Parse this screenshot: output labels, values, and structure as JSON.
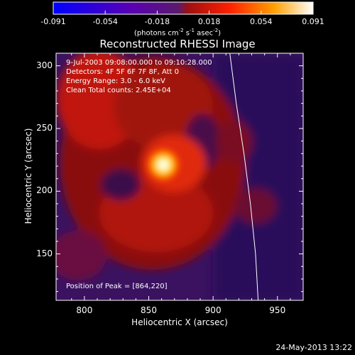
{
  "chart_data": {
    "type": "heatmap",
    "title": "Reconstructed RHESSI Image",
    "xlabel": "Heliocentric X (arcsec)",
    "ylabel": "Heliocentric Y (arcsec)",
    "xlim": [
      778,
      970
    ],
    "ylim": [
      113,
      310
    ],
    "xticks": [
      800,
      850,
      900,
      950
    ],
    "yticks": [
      150,
      200,
      250,
      300
    ],
    "colorbar": {
      "ticks": [
        "-0.091",
        "-0.054",
        "-0.018",
        "0.018",
        "0.054",
        "0.091"
      ],
      "range": [
        -0.091,
        0.091
      ],
      "unit_label": "(photons cm",
      "unit_exp1": "-2",
      "unit_mid": " s",
      "unit_exp2": "-1",
      "unit_tail": " asec",
      "unit_exp3": "-2",
      "unit_close": ")"
    },
    "annotations": {
      "time": "9-Jul-2003 09:08:00.000 to 09:10:28.000",
      "detectors": "Detectors: 4F 5F 6F 7F 8F, Att 0",
      "energy": "Energy Range: 3.0 - 6.0 keV",
      "clean": "Clean    Total counts: 2.45E+04",
      "peak": "Position of Peak = [864,220]"
    },
    "peak": [
      864,
      220
    ],
    "limb_x": [
      913,
      918,
      924,
      929,
      933,
      935
    ],
    "limb_y": [
      310,
      270,
      230,
      190,
      150,
      113
    ],
    "colors": {
      "limb": "#ffffff",
      "background": "#000000"
    }
  },
  "footer": {
    "timestamp": "24-May-2013 13:22"
  }
}
